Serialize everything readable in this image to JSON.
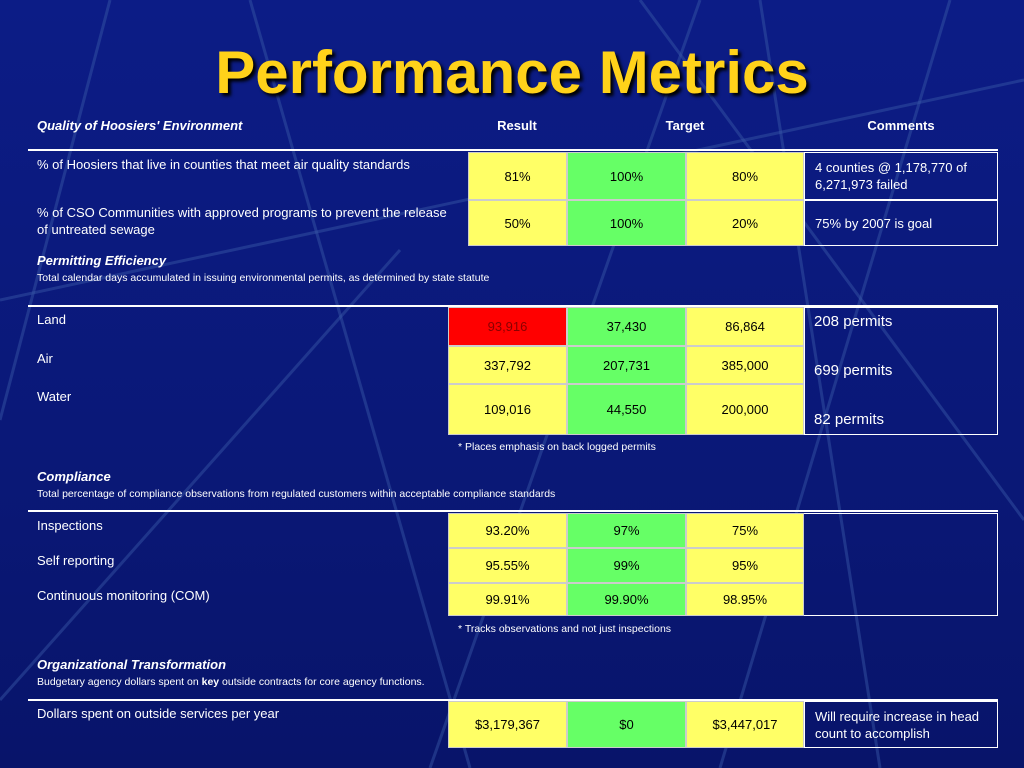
{
  "title": "Performance Metrics",
  "header": {
    "section": "Quality of Hoosiers' Environment",
    "result": "Result",
    "target": "Target",
    "comments": "Comments"
  },
  "sections": [
    {
      "rows": [
        {
          "label": "% of Hoosiers that live in counties that meet air quality standards",
          "values": [
            "81%",
            "100%",
            "80%"
          ],
          "comment": "4 counties @ 1,178,770 of 6,271,973 failed"
        },
        {
          "label": "% of CSO Communities with approved programs to prevent the release of untreated sewage",
          "values": [
            "50%",
            "100%",
            "20%"
          ],
          "comment": "75% by 2007 is goal"
        }
      ]
    },
    {
      "title": "Permitting Efficiency",
      "subtitle": "Total calendar days accumulated in issuing environmental permits, as determined by state statute",
      "rows": [
        {
          "label": "Land",
          "values": [
            "93,916",
            "37,430",
            "86,864"
          ],
          "result_color": "#ff0000"
        },
        {
          "label": "Air",
          "values": [
            "337,792",
            "207,731",
            "385,000"
          ]
        },
        {
          "label": "Water",
          "values": [
            "109,016",
            "44,550",
            "200,000"
          ]
        }
      ],
      "comments": [
        "208 permits",
        "699 permits",
        "82 permits"
      ],
      "note": "* Places emphasis on back logged permits"
    },
    {
      "title": "Compliance",
      "subtitle": "Total percentage of compliance observations from regulated customers within acceptable compliance standards",
      "rows": [
        {
          "label": "Inspections",
          "values": [
            "93.20%",
            "97%",
            "75%"
          ]
        },
        {
          "label": "Self reporting",
          "values": [
            "95.55%",
            "99%",
            "95%"
          ]
        },
        {
          "label": "Continuous monitoring (COM)",
          "values": [
            "99.91%",
            "99.90%",
            "98.95%"
          ]
        }
      ],
      "note": "* Tracks observations and not just inspections"
    },
    {
      "title": "Organizational Transformation",
      "subtitle": {
        "before": "Budgetary agency dollars spent on ",
        "bold": "key",
        "after": " outside contracts for core agency functions."
      },
      "rows": [
        {
          "label": "Dollars spent on outside services per year",
          "values": [
            "$3,179,367",
            "$0",
            "$3,447,017"
          ],
          "comment": "Will require increase in head count to accomplish"
        }
      ]
    }
  ]
}
